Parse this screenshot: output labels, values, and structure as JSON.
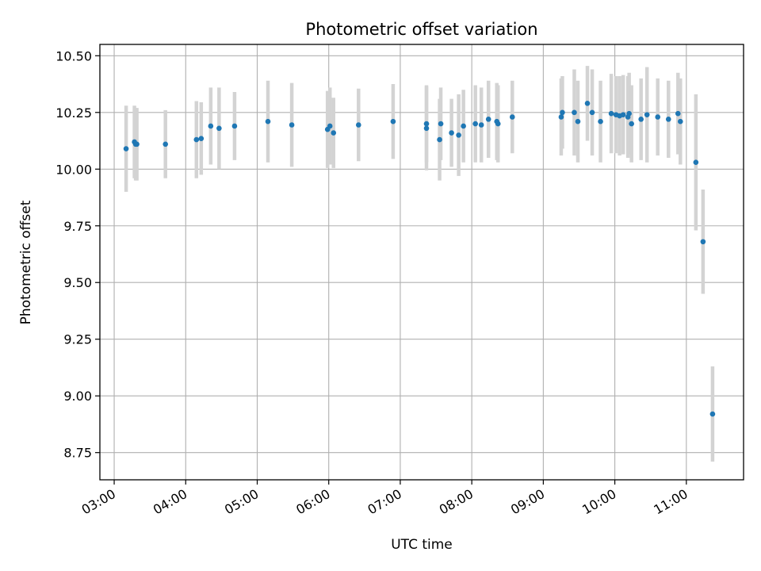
{
  "chart_data": {
    "type": "scatter",
    "title": "Photometric offset variation",
    "xlabel": "UTC time",
    "ylabel": "Photometric offset",
    "xlim": [
      "02:48",
      "11:48"
    ],
    "ylim": [
      8.63,
      10.55
    ],
    "x_ticks": [
      "03:00",
      "04:00",
      "05:00",
      "06:00",
      "07:00",
      "08:00",
      "09:00",
      "10:00",
      "11:00"
    ],
    "y_ticks": [
      8.75,
      9.0,
      9.25,
      9.5,
      9.75,
      10.0,
      10.25,
      10.5
    ],
    "grid": true,
    "colors": {
      "points": "#1f77b4",
      "error_bars": "#d3d3d3",
      "grid": "#b0b0b0"
    },
    "series": [
      {
        "x": [
          "03:10",
          "03:17",
          "03:18",
          "03:19",
          "03:43",
          "04:09",
          "04:13",
          "04:21",
          "04:28",
          "04:41",
          "05:09",
          "05:29",
          "05:59",
          "06:01",
          "06:04",
          "06:25",
          "06:54",
          "07:22",
          "07:22",
          "07:33",
          "07:34",
          "07:43",
          "07:49",
          "07:53",
          "08:03",
          "08:08",
          "08:14",
          "08:21",
          "08:22",
          "08:34",
          "09:15",
          "09:16",
          "09:26",
          "09:29",
          "09:37",
          "09:41",
          "09:48",
          "09:57",
          "10:01",
          "10:04",
          "10:07",
          "10:11",
          "10:12",
          "10:14",
          "10:22",
          "10:27",
          "10:36",
          "10:45",
          "10:53",
          "10:55",
          "11:08",
          "11:14",
          "11:22"
        ],
        "y": [
          10.09,
          10.12,
          10.11,
          10.11,
          10.11,
          10.13,
          10.135,
          10.19,
          10.18,
          10.19,
          10.21,
          10.195,
          10.175,
          10.19,
          10.16,
          10.195,
          10.21,
          10.18,
          10.2,
          10.13,
          10.2,
          10.16,
          10.15,
          10.19,
          10.2,
          10.195,
          10.22,
          10.21,
          10.2,
          10.23,
          10.23,
          10.25,
          10.25,
          10.21,
          10.29,
          10.25,
          10.21,
          10.245,
          10.24,
          10.235,
          10.24,
          10.23,
          10.245,
          10.2,
          10.22,
          10.24,
          10.23,
          10.22,
          10.245,
          10.21,
          10.03,
          9.68,
          8.92
        ],
        "yerr": [
          0.19,
          0.16,
          0.16,
          0.16,
          0.15,
          0.17,
          0.16,
          0.17,
          0.18,
          0.15,
          0.18,
          0.185,
          0.17,
          0.17,
          0.155,
          0.16,
          0.165,
          0.185,
          0.17,
          0.18,
          0.16,
          0.15,
          0.18,
          0.16,
          0.17,
          0.165,
          0.17,
          0.17,
          0.17,
          0.16,
          0.17,
          0.16,
          0.19,
          0.18,
          0.165,
          0.19,
          0.18,
          0.175,
          0.17,
          0.175,
          0.175,
          0.18,
          0.18,
          0.17,
          0.18,
          0.21,
          0.17,
          0.17,
          0.18,
          0.19,
          0.3,
          0.23,
          0.21
        ]
      }
    ]
  }
}
